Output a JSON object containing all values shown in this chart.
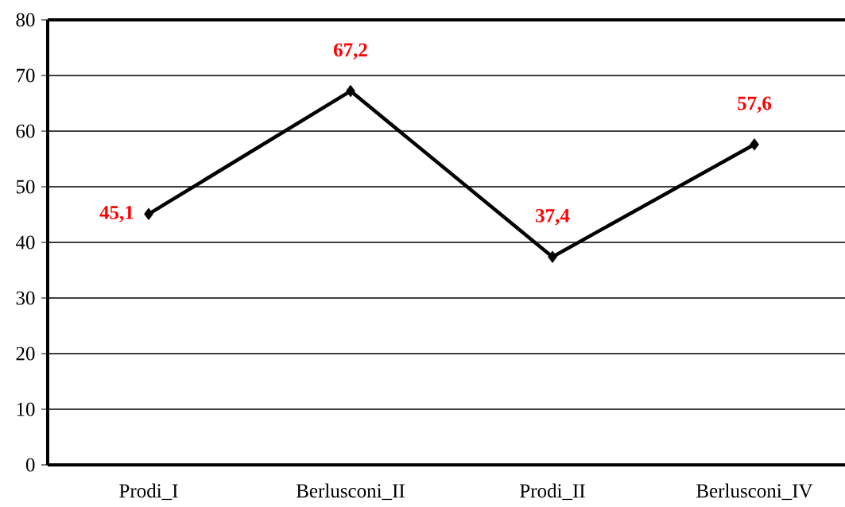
{
  "chart_data": {
    "type": "line",
    "categories": [
      "Prodi_I",
      "Berlusconi_II",
      "Prodi_II",
      "Berlusconi_IV"
    ],
    "series": [
      {
        "color": "#000000",
        "values": [
          45.1,
          67.2,
          37.4,
          57.6
        ],
        "value_labels": [
          "45,1",
          "67,2",
          "37,4",
          "57,6"
        ]
      }
    ],
    "ylim": [
      0,
      80
    ],
    "yticks": [
      0,
      10,
      20,
      30,
      40,
      50,
      60,
      70,
      80
    ],
    "grid": "y",
    "marker": "diamond",
    "line_style": "solid"
  }
}
